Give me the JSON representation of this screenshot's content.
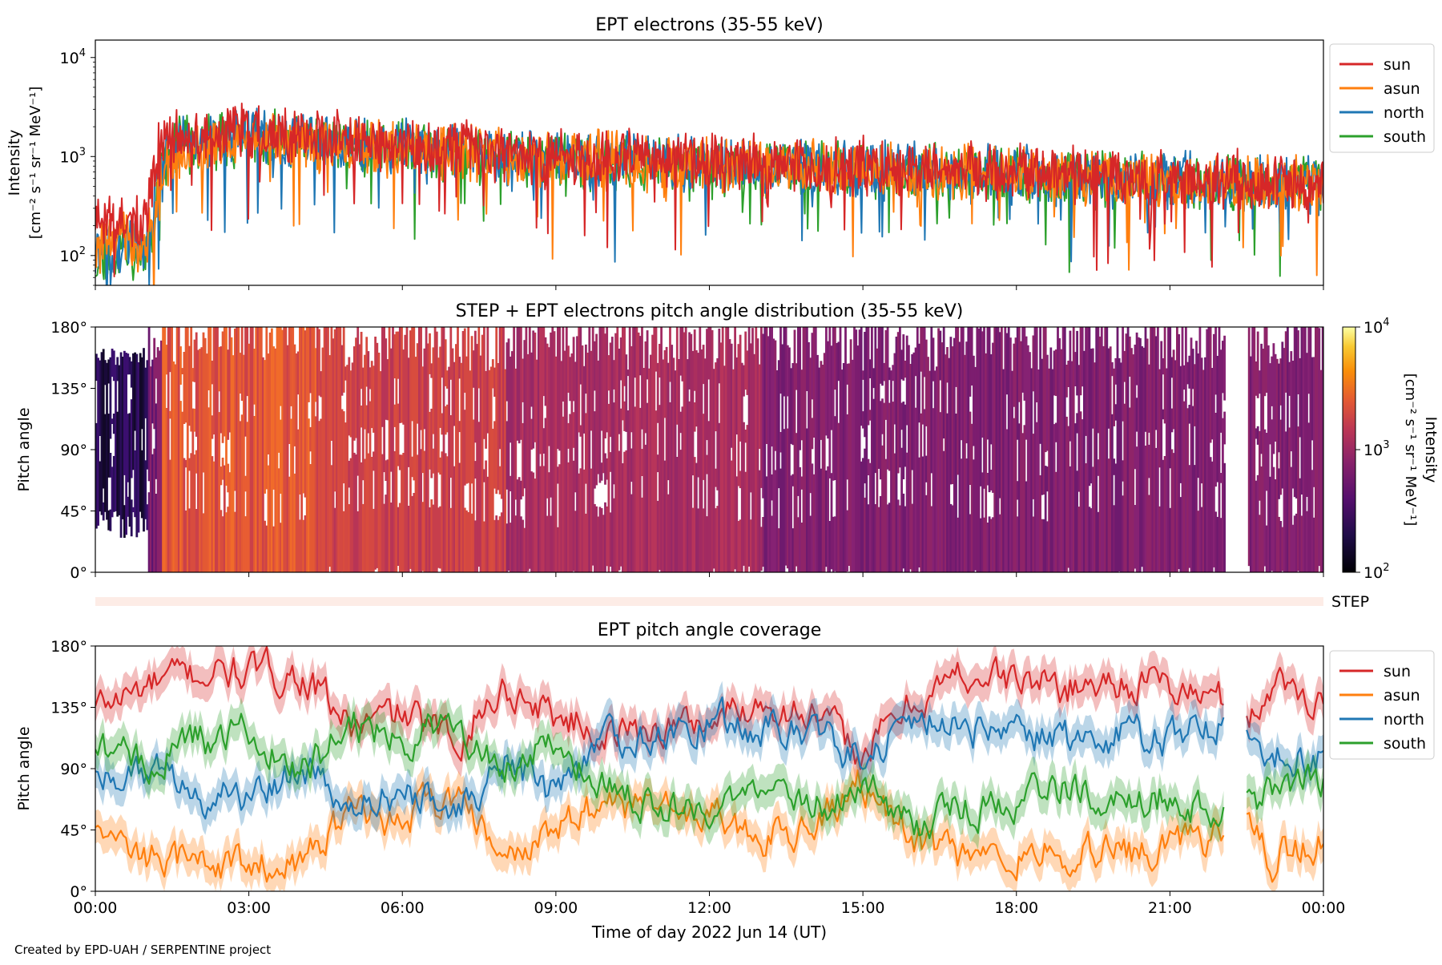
{
  "colors": {
    "sun": "#d62728",
    "asun": "#ff7f0e",
    "north": "#1f77b4",
    "south": "#2ca02c",
    "step_band": "#fdece6"
  },
  "credit": "Created by EPD-UAH / SERPENTINE project",
  "x_axis": {
    "label": "Time of day 2022 Jun 14 (UT)",
    "range_hours": [
      0,
      24
    ],
    "ticks": [
      "00:00",
      "03:00",
      "06:00",
      "09:00",
      "12:00",
      "15:00",
      "18:00",
      "21:00",
      "00:00"
    ]
  },
  "chart_data": [
    {
      "type": "line",
      "title": "EPT electrons (35-55 keV)",
      "ylabel": [
        "Intensity",
        "[cm⁻² s⁻¹ sr⁻¹ MeV⁻¹]"
      ],
      "yscale": "log",
      "ylim": [
        50,
        15000
      ],
      "ytick_values": [
        100,
        1000,
        10000
      ],
      "ytick_labels": [
        [
          "10",
          "2"
        ],
        [
          "10",
          "3"
        ],
        [
          "10",
          "4"
        ]
      ],
      "legend": "outside-right",
      "x_hours": [
        0,
        0.5,
        1.0,
        1.15,
        1.3,
        1.5,
        2.0,
        3.0,
        4.0,
        6.0,
        9.0,
        12.0,
        15.0,
        18.0,
        21.0,
        24.0
      ],
      "series": [
        {
          "name": "sun",
          "values": [
            200,
            220,
            200,
            700,
            1400,
            1500,
            1600,
            1800,
            1600,
            1300,
            1000,
            900,
            800,
            700,
            600,
            550
          ]
        },
        {
          "name": "asun",
          "values": [
            120,
            150,
            120,
            250,
            700,
            1000,
            1200,
            1500,
            1400,
            1200,
            950,
            850,
            750,
            650,
            580,
            520
          ]
        },
        {
          "name": "north",
          "values": [
            100,
            140,
            110,
            300,
            1000,
            1300,
            1450,
            1600,
            1500,
            1250,
            950,
            850,
            750,
            650,
            570,
            510
          ]
        },
        {
          "name": "south",
          "values": [
            90,
            120,
            100,
            260,
            900,
            1200,
            1350,
            1550,
            1450,
            1200,
            920,
            820,
            720,
            630,
            560,
            500
          ]
        }
      ]
    },
    {
      "type": "heatmap",
      "title": "STEP + EPT electrons pitch angle distribution (35-55 keV)",
      "ylabel": "Pitch angle",
      "ylim": [
        0,
        180
      ],
      "ytick_labels": [
        "0°",
        "45°",
        "90°",
        "135°",
        "180°"
      ],
      "colorbar": {
        "label": [
          "Intensity",
          "[cm⁻² s⁻¹ sr⁻¹ MeV⁻¹]"
        ],
        "scale": "log",
        "range": [
          100,
          10000
        ],
        "tick_labels": [
          [
            "10",
            "2"
          ],
          [
            "10",
            "3"
          ],
          [
            "10",
            "4"
          ]
        ],
        "colormap": "inferno"
      },
      "data_gap_hours": [
        22.05,
        22.5
      ],
      "step_label": "STEP"
    },
    {
      "type": "line",
      "title": "EPT pitch angle coverage",
      "ylabel": "Pitch angle",
      "ylim": [
        0,
        180
      ],
      "ytick_labels": [
        "0°",
        "45°",
        "90°",
        "135°",
        "180°"
      ],
      "legend": "outside-right",
      "data_gap_hours": [
        22.05,
        22.5
      ],
      "x_hours": [
        0,
        1,
        2,
        3,
        4,
        5,
        6,
        7,
        8,
        9,
        10,
        11,
        12,
        13,
        14,
        15,
        16,
        17,
        18,
        19,
        20,
        21,
        22,
        22.6,
        23,
        24
      ],
      "series": [
        {
          "name": "sun",
          "values": [
            135,
            150,
            160,
            160,
            160,
            120,
            130,
            110,
            150,
            130,
            115,
            120,
            125,
            140,
            130,
            100,
            140,
            160,
            155,
            150,
            155,
            150,
            140,
            130,
            155,
            140
          ]
        },
        {
          "name": "asun",
          "values": [
            45,
            25,
            20,
            20,
            20,
            60,
            50,
            70,
            25,
            45,
            65,
            60,
            55,
            40,
            50,
            80,
            40,
            20,
            25,
            30,
            25,
            30,
            40,
            50,
            25,
            40
          ]
        },
        {
          "name": "north",
          "values": [
            85,
            90,
            70,
            70,
            90,
            60,
            75,
            55,
            95,
            70,
            110,
            115,
            125,
            120,
            120,
            95,
            130,
            120,
            115,
            110,
            115,
            110,
            125,
            120,
            105,
            95
          ]
        },
        {
          "name": "south",
          "values": [
            100,
            95,
            110,
            115,
            85,
            125,
            110,
            125,
            85,
            110,
            75,
            65,
            60,
            65,
            60,
            80,
            45,
            60,
            65,
            75,
            65,
            70,
            55,
            65,
            75,
            80
          ]
        }
      ]
    }
  ]
}
